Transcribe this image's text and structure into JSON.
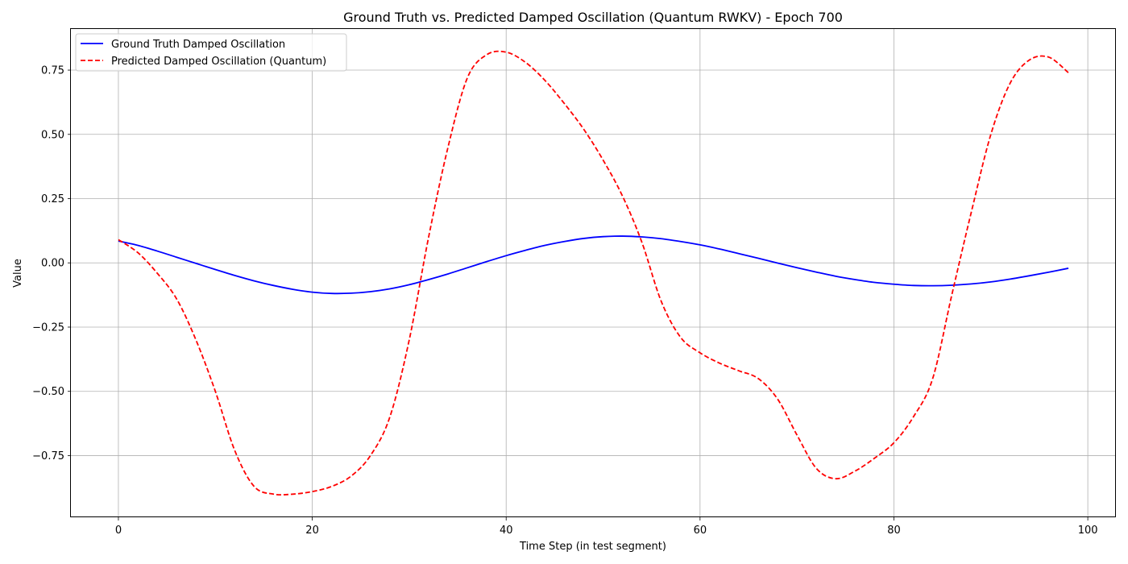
{
  "chart_data": {
    "type": "line",
    "title": "Ground Truth vs. Predicted Damped Oscillation (Quantum RWKV) - Epoch 700",
    "xlabel": "Time Step (in test segment)",
    "ylabel": "Value",
    "xlim": [
      -4.9,
      102.9
    ],
    "ylim": [
      -0.99,
      0.91
    ],
    "xticks": [
      0,
      20,
      40,
      60,
      80,
      100
    ],
    "xtick_labels": [
      "0",
      "20",
      "40",
      "60",
      "80",
      "100"
    ],
    "yticks": [
      -0.75,
      -0.5,
      -0.25,
      0.0,
      0.25,
      0.5,
      0.75
    ],
    "ytick_labels": [
      "−0.75",
      "−0.50",
      "−0.25",
      "0.00",
      "0.25",
      "0.50",
      "0.75"
    ],
    "grid": true,
    "legend_position": "upper left",
    "series": [
      {
        "name": "Ground Truth Damped Oscillation",
        "color": "#0000ff",
        "style": "solid",
        "x": [
          0,
          2,
          4,
          6,
          8,
          10,
          12,
          14,
          16,
          18,
          20,
          22,
          24,
          26,
          28,
          30,
          32,
          34,
          36,
          38,
          40,
          42,
          44,
          46,
          48,
          50,
          52,
          54,
          56,
          58,
          60,
          62,
          64,
          66,
          68,
          70,
          72,
          74,
          76,
          78,
          80,
          82,
          84,
          86,
          88,
          90,
          92,
          94,
          96,
          98
        ],
        "y": [
          0.085,
          0.068,
          0.046,
          0.022,
          -0.002,
          -0.026,
          -0.049,
          -0.07,
          -0.088,
          -0.103,
          -0.114,
          -0.119,
          -0.118,
          -0.112,
          -0.101,
          -0.085,
          -0.065,
          -0.043,
          -0.019,
          0.005,
          0.028,
          0.049,
          0.068,
          0.083,
          0.095,
          0.102,
          0.104,
          0.101,
          0.094,
          0.083,
          0.07,
          0.054,
          0.036,
          0.018,
          -0.001,
          -0.019,
          -0.036,
          -0.052,
          -0.065,
          -0.076,
          -0.083,
          -0.088,
          -0.089,
          -0.087,
          -0.082,
          -0.074,
          -0.063,
          -0.05,
          -0.036,
          -0.021
        ]
      },
      {
        "name": "Predicted Damped Oscillation (Quantum)",
        "color": "#ff0000",
        "style": "dashed",
        "x": [
          0,
          2,
          4,
          6,
          8,
          10,
          12,
          14,
          16,
          18,
          20,
          22,
          24,
          26,
          28,
          30,
          32,
          34,
          36,
          38,
          40,
          42,
          44,
          46,
          48,
          50,
          52,
          54,
          56,
          58,
          60,
          62,
          64,
          66,
          68,
          70,
          72,
          74,
          76,
          78,
          80,
          82,
          84,
          86,
          88,
          90,
          92,
          94,
          96,
          98
        ],
        "y": [
          0.09,
          0.04,
          -0.04,
          -0.14,
          -0.3,
          -0.5,
          -0.73,
          -0.87,
          -0.9,
          -0.9,
          -0.89,
          -0.87,
          -0.83,
          -0.75,
          -0.6,
          -0.3,
          0.1,
          0.45,
          0.72,
          0.81,
          0.82,
          0.78,
          0.71,
          0.62,
          0.52,
          0.4,
          0.26,
          0.08,
          -0.15,
          -0.29,
          -0.35,
          -0.39,
          -0.42,
          -0.45,
          -0.53,
          -0.67,
          -0.8,
          -0.84,
          -0.81,
          -0.76,
          -0.7,
          -0.6,
          -0.45,
          -0.12,
          0.2,
          0.5,
          0.7,
          0.79,
          0.8,
          0.74
        ]
      }
    ]
  }
}
